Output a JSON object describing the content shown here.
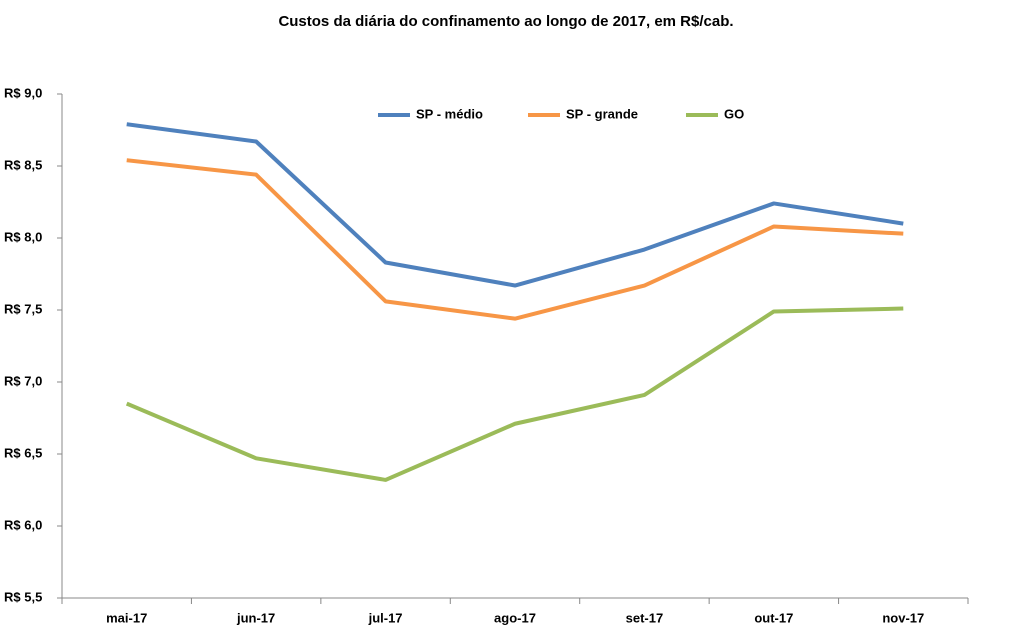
{
  "chart_data": {
    "type": "line",
    "title": "Custos da diária do confinamento ao longo de 2017, em R$/cab.",
    "categories": [
      "mai-17",
      "jun-17",
      "jul-17",
      "ago-17",
      "set-17",
      "out-17",
      "nov-17"
    ],
    "series": [
      {
        "name": "SP - médio",
        "color": "#4f81bd",
        "values": [
          8.79,
          8.67,
          7.83,
          7.67,
          7.92,
          8.24,
          8.1
        ]
      },
      {
        "name": "SP - grande",
        "color": "#f79646",
        "values": [
          8.54,
          8.44,
          7.56,
          7.44,
          7.67,
          8.08,
          8.03
        ]
      },
      {
        "name": "GO",
        "color": "#9bbb59",
        "values": [
          6.85,
          6.47,
          6.32,
          6.71,
          6.91,
          7.49,
          7.51
        ]
      }
    ],
    "ylim": [
      5.5,
      9.0
    ],
    "yticks": [
      {
        "value": 5.5,
        "label": "R$ 5,5"
      },
      {
        "value": 6.0,
        "label": "R$ 6,0"
      },
      {
        "value": 6.5,
        "label": "R$ 6,5"
      },
      {
        "value": 7.0,
        "label": "R$ 7,0"
      },
      {
        "value": 7.5,
        "label": "R$ 7,5"
      },
      {
        "value": 8.0,
        "label": "R$ 8,0"
      },
      {
        "value": 8.5,
        "label": "R$ 8,5"
      },
      {
        "value": 9.0,
        "label": "R$ 9,0"
      }
    ],
    "grid": false,
    "legend": "top"
  }
}
